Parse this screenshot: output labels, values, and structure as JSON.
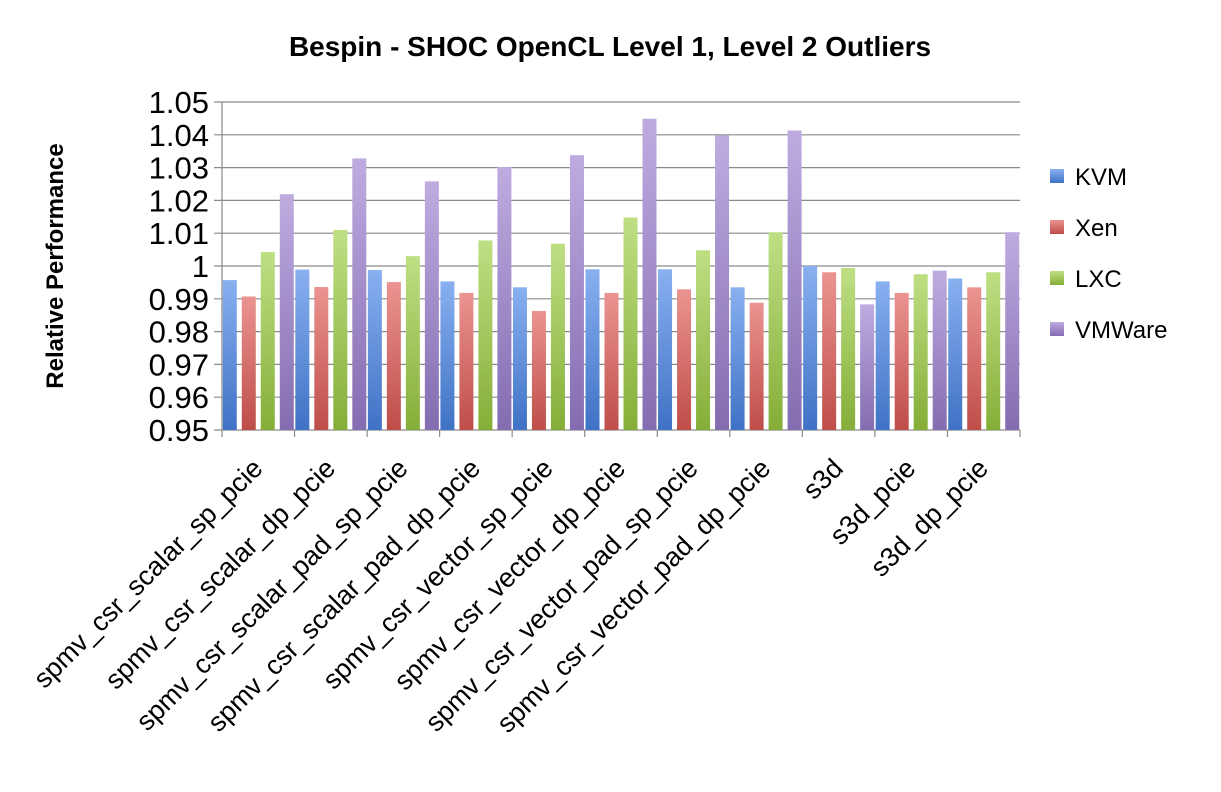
{
  "chart_data": {
    "type": "bar",
    "title": "Bespin - SHOC OpenCL Level 1, Level 2 Outliers",
    "xlabel": "",
    "ylabel": "Relative Performance",
    "ylim": [
      0.95,
      1.05
    ],
    "yticks": [
      "1.05",
      "1.04",
      "1.03",
      "1.02",
      "1.01",
      "1",
      "0.99",
      "0.98",
      "0.97",
      "0.96",
      "0.95"
    ],
    "grid": true,
    "legend_position": "right",
    "categories": [
      "spmv_csr_scalar_sp_pcie",
      "spmv_csr_scalar_dp_pcie",
      "spmv_csr_scalar_pad_sp_pcie",
      "spmv_csr_scalar_pad_dp_pcie",
      "spmv_csr_vector_sp_pcie",
      "spmv_csr_vector_dp_pcie",
      "spmv_csr_vector_pad_sp_pcie",
      "spmv_csr_vector_pad_dp_pcie",
      "s3d",
      "s3d_pcie",
      "s3d_dp_pcie"
    ],
    "series": [
      {
        "name": "KVM",
        "color": "#4a86e8",
        "values": [
          0.9957,
          0.9989,
          0.9988,
          0.9953,
          0.9935,
          0.999,
          0.999,
          0.9935,
          1.0,
          0.9953,
          0.9962
        ]
      },
      {
        "name": "Xen",
        "color": "#e05a55",
        "values": [
          0.9907,
          0.9936,
          0.9951,
          0.9918,
          0.9863,
          0.9918,
          0.9929,
          0.9888,
          0.9981,
          0.9918,
          0.9935
        ]
      },
      {
        "name": "LXC",
        "color": "#9ccd42",
        "values": [
          1.0043,
          1.011,
          1.003,
          1.0078,
          1.0068,
          1.0148,
          1.0048,
          1.0103,
          0.9994,
          0.9975,
          0.9981
        ]
      },
      {
        "name": "VMWare",
        "color": "#9b7fd0",
        "values": [
          1.0219,
          1.0328,
          1.0258,
          1.0302,
          1.0338,
          1.0449,
          1.0398,
          1.0413,
          0.9883,
          0.9986,
          1.0103
        ]
      }
    ]
  }
}
